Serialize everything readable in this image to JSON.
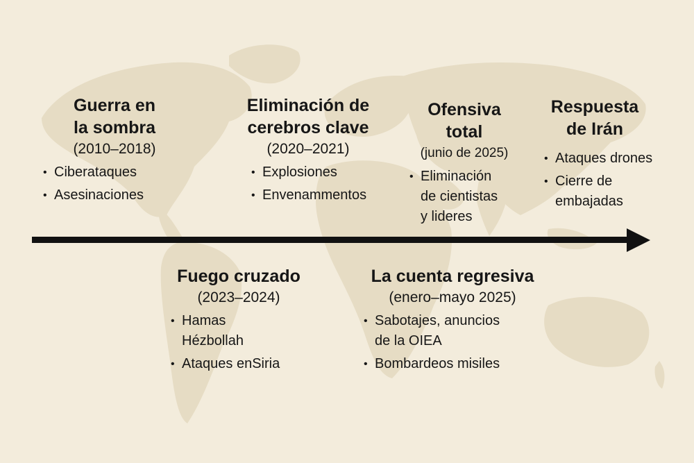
{
  "background": {
    "color": "#f3ecdc",
    "map_color": "#e6dcc4"
  },
  "timeline": {
    "color": "#111111"
  },
  "events": {
    "e1": {
      "title": "Guerra en\nla sombra",
      "period": "(2010–2018)",
      "items": [
        "Ciberataques",
        "Asesinaciones"
      ]
    },
    "e2": {
      "title": "Eliminación de\ncerebros clave",
      "period": "(2020–2021)",
      "items": [
        "Explosiones",
        "Envenammentos"
      ]
    },
    "e3": {
      "title": "Ofensiva\ntotal",
      "period": "(junio de 2025)",
      "items": [
        "Eliminación\nde cientistas\ny lideres"
      ]
    },
    "e4": {
      "title": "Respuesta\nde Irán",
      "items": [
        "Ataques drones",
        "Cierre de\nembajadas"
      ]
    },
    "e5": {
      "title": "Fuego cruzado",
      "period": "(2023–2024)",
      "items": [
        "Hamas\nHézbollah",
        "Ataques enSiria"
      ]
    },
    "e6": {
      "title": "La cuenta regresiva",
      "period": "(enero–mayo 2025)",
      "items": [
        "Sabotajes, anuncios\nde la OIEA",
        "Bombardeos misiles"
      ]
    }
  }
}
